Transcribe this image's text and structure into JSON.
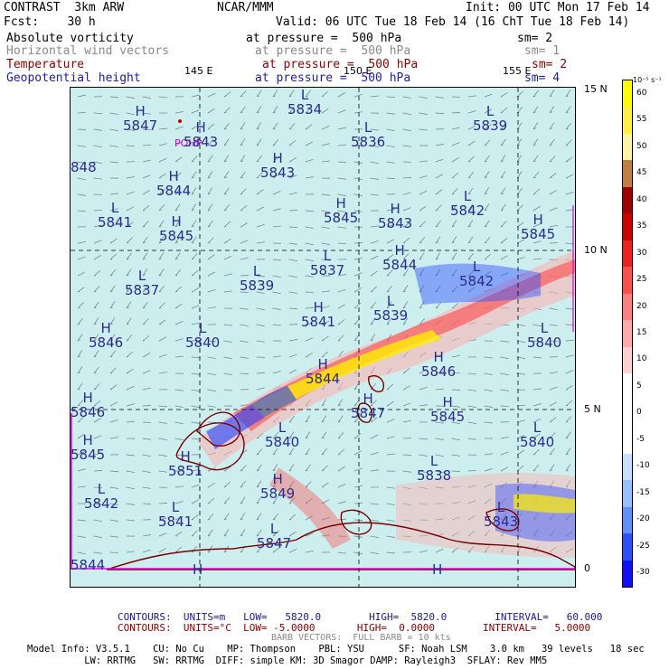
{
  "header": {
    "model": "CONTRAST  3km ARW",
    "center": "NCAR/MMM",
    "init": "Init: 00 UTC Mon 17 Feb 14",
    "fcst": "Fcst:    30 h",
    "valid": "Valid: 06 UTC Tue 18 Feb 14 (16 ChT Tue 18 Feb 14)",
    "fields": [
      {
        "name": "Absolute vorticity",
        "level": "at pressure =  500 hPa",
        "sm": "sm= 2",
        "color": "#000000"
      },
      {
        "name": "Horizontal wind vectors",
        "level": "at pressure =  500 hPa",
        "sm": "sm= 1",
        "color": "#8a8a8a"
      },
      {
        "name": "Temperature",
        "level": "at pressure =  500 hPa",
        "sm": "sm= 2",
        "color": "#8b0000"
      },
      {
        "name": "Geopotential height",
        "level": "at pressure =  500 hPa",
        "sm": "sm= 4",
        "color": "#2020a0"
      }
    ]
  },
  "map": {
    "lon_labels": [
      "145 E",
      "150 E",
      "155 E"
    ],
    "lat_labels": [
      "15 N",
      "10 N",
      "5 N",
      "0"
    ],
    "station": "POHP",
    "pressure_centers": [
      {
        "type": "H",
        "value": "5847"
      },
      {
        "type": "H",
        "value": "5843"
      },
      {
        "type": "L",
        "value": "5834"
      },
      {
        "type": "L",
        "value": "5836"
      },
      {
        "type": "L",
        "value": "5839"
      },
      {
        "type": "",
        "value": "848"
      },
      {
        "type": "H",
        "value": "5844"
      },
      {
        "type": "H",
        "value": "5843"
      },
      {
        "type": "L",
        "value": "5841"
      },
      {
        "type": "H",
        "value": "5845"
      },
      {
        "type": "H",
        "value": "5845"
      },
      {
        "type": "H",
        "value": "5843"
      },
      {
        "type": "L",
        "value": "5842"
      },
      {
        "type": "H",
        "value": "5845"
      },
      {
        "type": "L",
        "value": "5837"
      },
      {
        "type": "H",
        "value": "5844"
      },
      {
        "type": "L",
        "value": "5842"
      },
      {
        "type": "L",
        "value": "5839"
      },
      {
        "type": "L",
        "value": "5837"
      },
      {
        "type": "H",
        "value": "5841"
      },
      {
        "type": "L",
        "value": "5839"
      },
      {
        "type": "H",
        "value": "5846"
      },
      {
        "type": "L",
        "value": "5840"
      },
      {
        "type": "L",
        "value": "5840"
      },
      {
        "type": "H",
        "value": "5844"
      },
      {
        "type": "H",
        "value": "5846"
      },
      {
        "type": "H",
        "value": "5846"
      },
      {
        "type": "H",
        "value": "5847"
      },
      {
        "type": "H",
        "value": "5845"
      },
      {
        "type": "L",
        "value": "5840"
      },
      {
        "type": "H",
        "value": "5845"
      },
      {
        "type": "L",
        "value": "5840"
      },
      {
        "type": "H",
        "value": "5851"
      },
      {
        "type": "L",
        "value": "5838"
      },
      {
        "type": "H",
        "value": "5849"
      },
      {
        "type": "L",
        "value": "5842"
      },
      {
        "type": "L",
        "value": "5843"
      },
      {
        "type": "L",
        "value": "5841"
      },
      {
        "type": "L",
        "value": "5847"
      },
      {
        "type": "",
        "value": "5844"
      },
      {
        "type": "H",
        "value": ""
      },
      {
        "type": "H",
        "value": ""
      }
    ]
  },
  "colorbar": {
    "unit": "10⁻⁵ s⁻¹",
    "ticks": [
      "60",
      "55",
      "50",
      "45",
      "40",
      "35",
      "30",
      "25",
      "20",
      "15",
      "10",
      "5",
      "0",
      "-5",
      "-10",
      "-15",
      "-20",
      "-25",
      "-30"
    ],
    "colors": [
      "#ffff00",
      "#ffee44",
      "#fff5a0",
      "#c08040",
      "#a00000",
      "#cc0000",
      "#ee2020",
      "#ff5050",
      "#ff8080",
      "#ffa8a8",
      "#ffd0d0",
      "#ffffff",
      "#ffffff",
      "#ffffff",
      "#c8e0ff",
      "#98c0ff",
      "#6090ff",
      "#3050ff",
      "#1010ff"
    ]
  },
  "footer": {
    "contours1": "CONTOURS:  UNITS=m   LOW=   5820.0        HIGH=  5820.0        INTERVAL=   60.000",
    "contours2": "CONTOURS:  UNITS=°C  LOW= -5.0000       HIGH=  0.0000        INTERVAL=   5.0000",
    "barbs": "BARB VECTORS:  FULL BARB = 10 kts",
    "model1": "Model Info: V3.5.1    CU: No Cu    MP: Thompson    PBL: YSU      SF: Noah LSM    3.0 km   39 levels   18 sec",
    "model2": "          LW: RRTMG   SW: RRTMG  DIFF: simple KM: 3D Smagor DAMP: Rayleigh3  SFLAY: Rev MM5"
  }
}
